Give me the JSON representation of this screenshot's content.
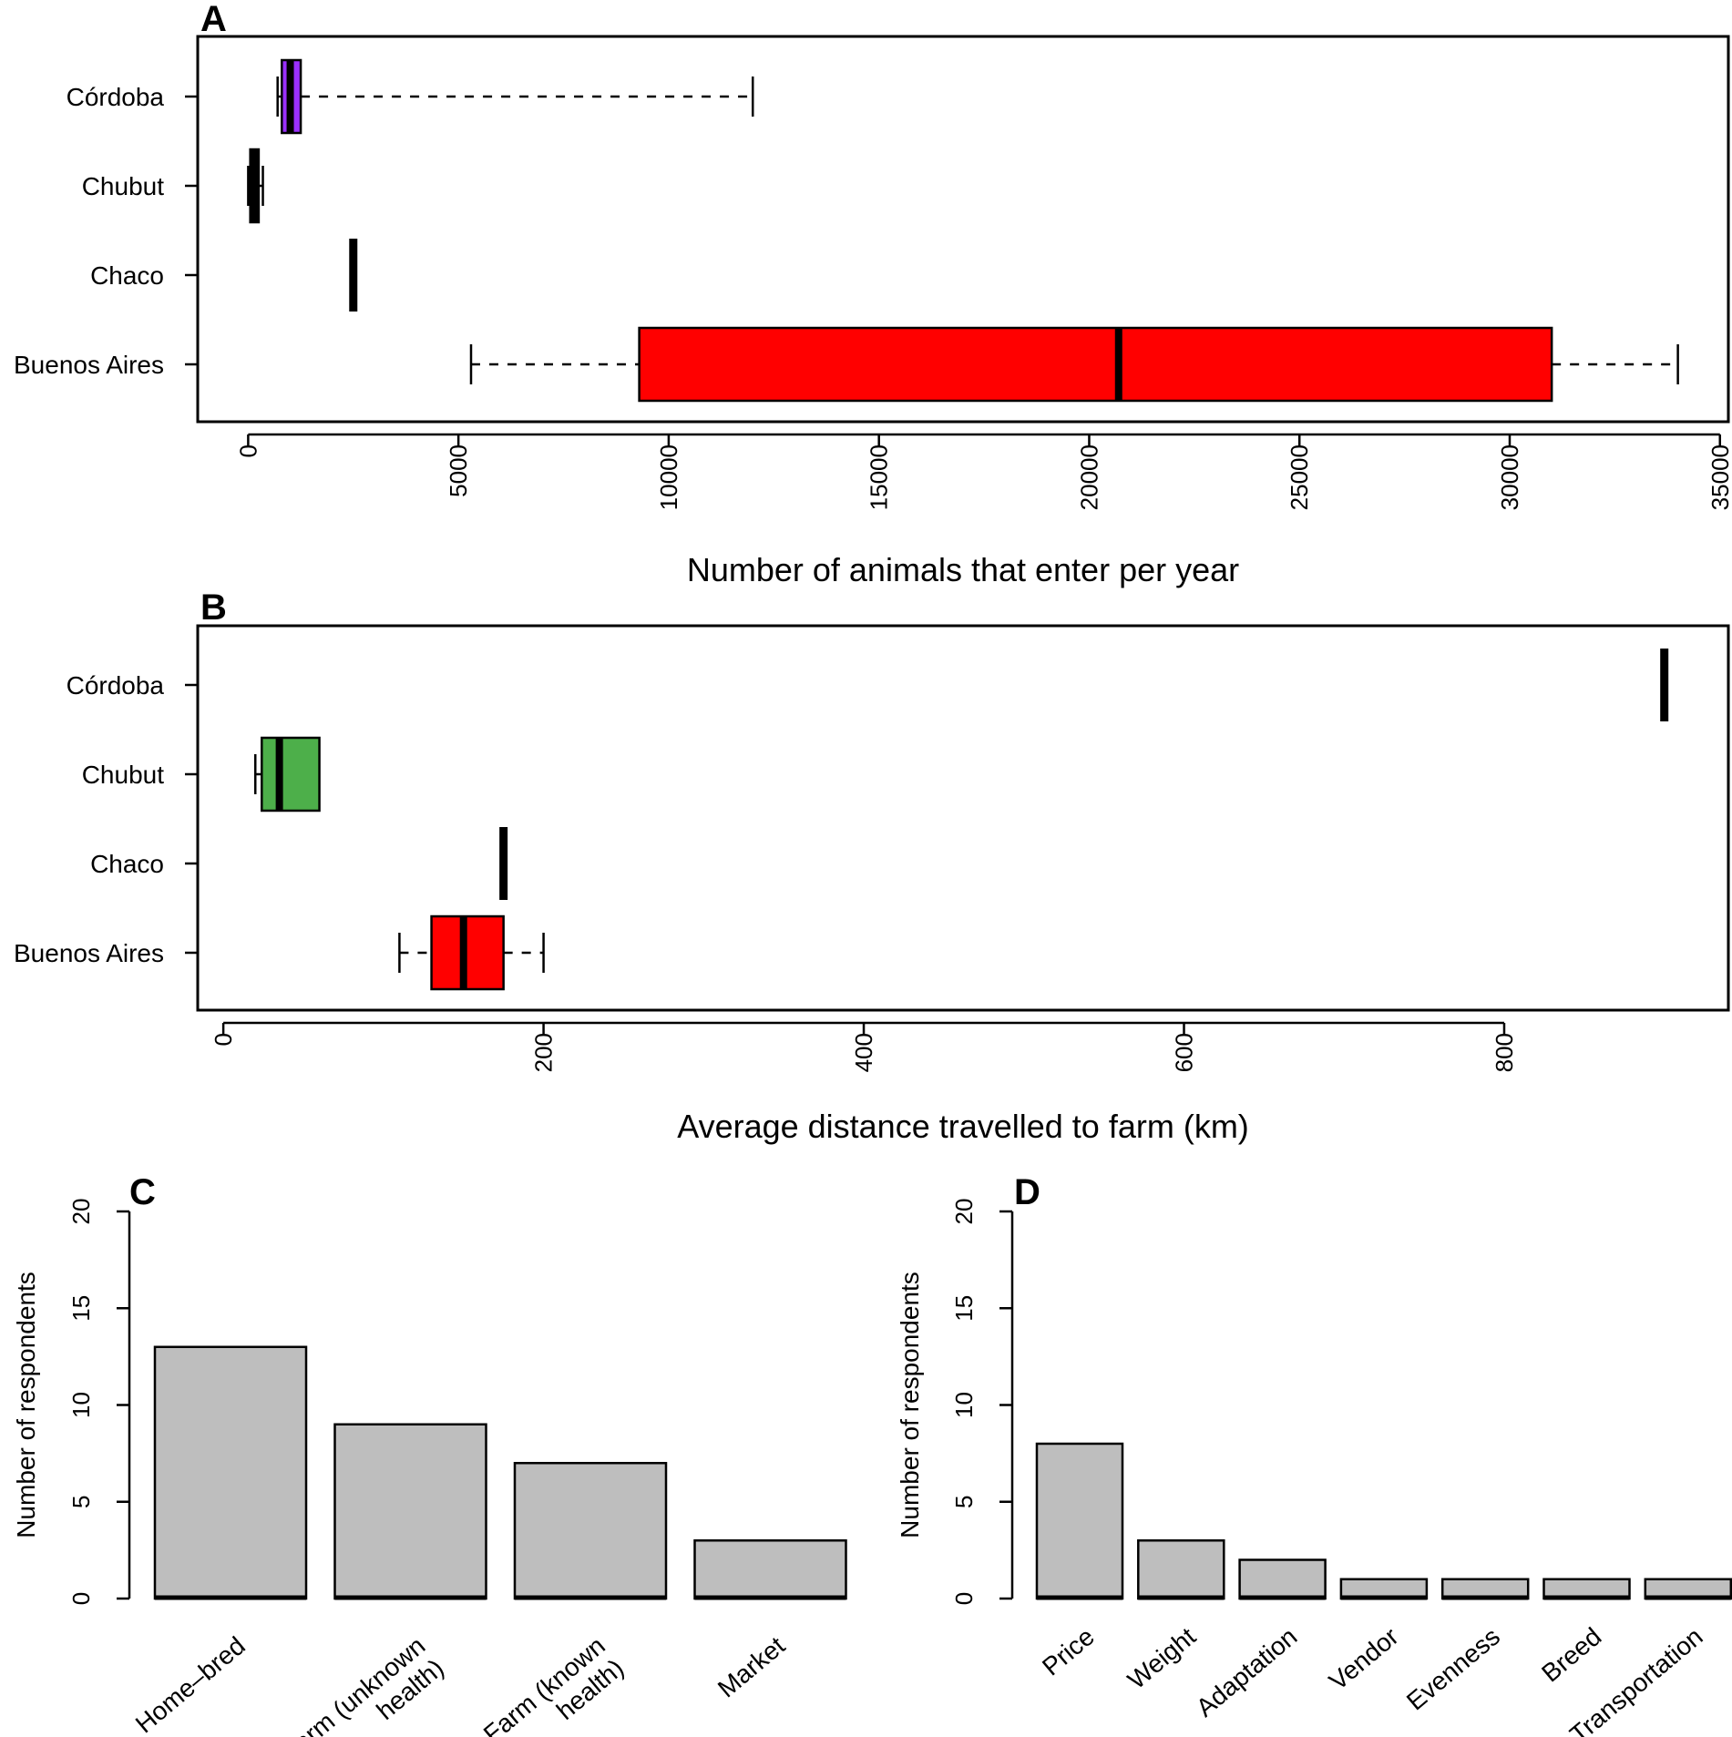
{
  "chart_data": [
    {
      "panel": "A",
      "type": "boxplot",
      "orientation": "horizontal",
      "xlabel": "Number of animals that enter per year",
      "xlim": [
        -1200,
        35200
      ],
      "xticks": [
        0,
        5000,
        10000,
        15000,
        20000,
        25000,
        30000,
        35000
      ],
      "xtick_labels": [
        "0",
        "5000",
        "10000",
        "15000",
        "20000",
        "25000",
        "30000",
        "35000"
      ],
      "categories": [
        "Córdoba",
        "Chubut",
        "Chaco",
        "Buenos Aires"
      ],
      "boxes": [
        {
          "category": "Córdoba",
          "color": "#9B30FF",
          "whisker_low": 700,
          "q1": 800,
          "median": 1000,
          "q3": 1250,
          "whisker_high": 12000
        },
        {
          "category": "Chubut",
          "color": "#000000",
          "whisker_low": 0,
          "q1": 50,
          "median": 150,
          "q3": 250,
          "whisker_high": 350
        },
        {
          "category": "Chaco",
          "color": "#000000",
          "whisker_low": 2500,
          "q1": 2500,
          "median": 2500,
          "q3": 2500,
          "whisker_high": 2500
        },
        {
          "category": "Buenos Aires",
          "color": "#FF0000",
          "whisker_low": 5300,
          "q1": 9300,
          "median": 20700,
          "q3": 31000,
          "whisker_high": 34000
        }
      ]
    },
    {
      "panel": "B",
      "type": "boxplot",
      "orientation": "horizontal",
      "xlabel": "Average distance travelled to farm (km)",
      "xlim": [
        -16,
        940
      ],
      "xticks": [
        0,
        200,
        400,
        600,
        800
      ],
      "xtick_labels": [
        "0",
        "200",
        "400",
        "600",
        "800"
      ],
      "categories": [
        "Córdoba",
        "Chubut",
        "Chaco",
        "Buenos Aires"
      ],
      "boxes": [
        {
          "category": "Córdoba",
          "color": "#000000",
          "whisker_low": 900,
          "q1": 900,
          "median": 900,
          "q3": 900,
          "whisker_high": 900
        },
        {
          "category": "Chubut",
          "color": "#4DAF4A",
          "whisker_low": 20,
          "q1": 24,
          "median": 35,
          "q3": 60,
          "whisker_high": 60
        },
        {
          "category": "Chaco",
          "color": "#000000",
          "whisker_low": 175,
          "q1": 175,
          "median": 175,
          "q3": 175,
          "whisker_high": 175
        },
        {
          "category": "Buenos Aires",
          "color": "#FF0000",
          "whisker_low": 110,
          "q1": 130,
          "median": 150,
          "q3": 175,
          "whisker_high": 200
        }
      ]
    },
    {
      "panel": "C",
      "type": "bar",
      "ylabel": "Number of respondents",
      "ylim": [
        0,
        20
      ],
      "yticks": [
        0,
        5,
        10,
        15,
        20
      ],
      "ytick_labels": [
        "0",
        "5",
        "10",
        "15",
        "20"
      ],
      "bar_color": "#BEBEBE",
      "categories": [
        [
          "Home–bred"
        ],
        [
          "Farm (unknown",
          "health)"
        ],
        [
          "Farm (known",
          "health)"
        ],
        [
          "Market"
        ]
      ],
      "values": [
        13,
        9,
        7,
        3
      ]
    },
    {
      "panel": "D",
      "type": "bar",
      "ylabel": "Number of respondents",
      "ylim": [
        0,
        20
      ],
      "yticks": [
        0,
        5,
        10,
        15,
        20
      ],
      "ytick_labels": [
        "0",
        "5",
        "10",
        "15",
        "20"
      ],
      "bar_color": "#BEBEBE",
      "categories": [
        [
          "Price"
        ],
        [
          "Weight"
        ],
        [
          "Adaptation"
        ],
        [
          "Vendor"
        ],
        [
          "Evenness"
        ],
        [
          "Breed"
        ],
        [
          "Transportation"
        ]
      ],
      "values": [
        8,
        3,
        2,
        1,
        1,
        1,
        1
      ]
    }
  ]
}
